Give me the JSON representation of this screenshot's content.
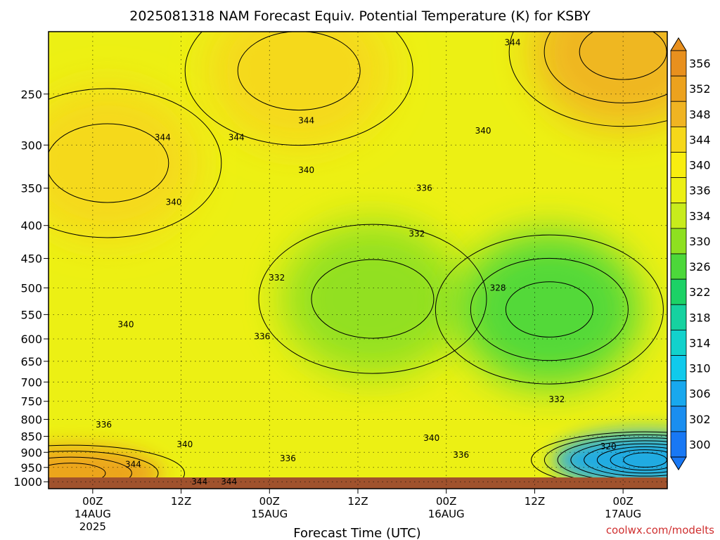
{
  "chart_data": {
    "type": "contour",
    "title": "2025081318 NAM Forecast Equiv. Potential Temperature (K) for KSBY",
    "xlabel": "Forecast Time (UTC)",
    "ylabel": "",
    "y_axis": {
      "ticks": [
        250,
        300,
        350,
        400,
        450,
        500,
        550,
        600,
        650,
        700,
        750,
        800,
        850,
        900,
        950,
        1000
      ],
      "range_hpa": [
        200,
        1025
      ],
      "scale": "log-pressure (inverted)"
    },
    "x_axis": {
      "ticks": [
        {
          "time": "00Z",
          "date": "14AUG",
          "year": "2025"
        },
        {
          "time": "12Z",
          "date": "",
          "year": ""
        },
        {
          "time": "00Z",
          "date": "15AUG",
          "year": ""
        },
        {
          "time": "12Z",
          "date": "",
          "year": ""
        },
        {
          "time": "00Z",
          "date": "16AUG",
          "year": ""
        },
        {
          "time": "12Z",
          "date": "",
          "year": ""
        },
        {
          "time": "00Z",
          "date": "17AUG",
          "year": ""
        }
      ],
      "range_hours": [
        -6,
        78
      ]
    },
    "colorbar": {
      "units": "K",
      "levels": [
        356,
        352,
        348,
        344,
        340,
        336,
        334,
        330,
        326,
        322,
        318,
        314,
        310,
        306,
        302,
        300
      ],
      "colors": [
        "#e8901e",
        "#eca21e",
        "#f0b422",
        "#f6d81a",
        "#f8ee10",
        "#ecf014",
        "#c8ec1c",
        "#8ee020",
        "#4cd83a",
        "#1cd266",
        "#16d2a0",
        "#12d2cc",
        "#10caec",
        "#18a8ee",
        "#1a8ef0",
        "#1878f4"
      ]
    },
    "contour_labels": [
      {
        "value": "344",
        "time_h": 57,
        "p": 208
      },
      {
        "value": "344",
        "time_h": 29,
        "p": 275
      },
      {
        "value": "340",
        "time_h": 53,
        "p": 285
      },
      {
        "value": "344",
        "time_h": 9.5,
        "p": 292
      },
      {
        "value": "344",
        "time_h": 19.5,
        "p": 292
      },
      {
        "value": "340",
        "time_h": 29,
        "p": 328
      },
      {
        "value": "336",
        "time_h": 45,
        "p": 350
      },
      {
        "value": "340",
        "time_h": 11,
        "p": 368
      },
      {
        "value": "332",
        "time_h": 44,
        "p": 412
      },
      {
        "value": "332",
        "time_h": 25,
        "p": 482
      },
      {
        "value": "328",
        "time_h": 55,
        "p": 500
      },
      {
        "value": "340",
        "time_h": 4.5,
        "p": 570
      },
      {
        "value": "336",
        "time_h": 23,
        "p": 595
      },
      {
        "value": "332",
        "time_h": 63,
        "p": 745
      },
      {
        "value": "336",
        "time_h": 1.5,
        "p": 815
      },
      {
        "value": "340",
        "time_h": 46,
        "p": 855
      },
      {
        "value": "340",
        "time_h": 12.5,
        "p": 875
      },
      {
        "value": "320",
        "time_h": 70,
        "p": 882
      },
      {
        "value": "336",
        "time_h": 50,
        "p": 908
      },
      {
        "value": "336",
        "time_h": 26.5,
        "p": 920
      },
      {
        "value": "344",
        "time_h": 5.5,
        "p": 940
      },
      {
        "value": "344",
        "time_h": 14.5,
        "p": 1000
      },
      {
        "value": "344",
        "time_h": 18.5,
        "p": 1000
      }
    ],
    "fields": {
      "background": 338,
      "features": [
        {
          "label": "upper warm band",
          "value": 346,
          "time_h": 28,
          "p": 230
        },
        {
          "label": "upper-left warm plume",
          "value": 346,
          "time_h": 2,
          "p": 320
        },
        {
          "label": "upper-right warm",
          "value": 350,
          "time_h": 72,
          "p": 215
        },
        {
          "label": "mid-level moist pocket",
          "value": 331,
          "time_h": 38,
          "p": 520
        },
        {
          "label": "mid-level dry region",
          "value": 326,
          "time_h": 62,
          "p": 540
        },
        {
          "label": "low-level cold pool",
          "value": 306,
          "time_h": 75,
          "p": 925
        },
        {
          "label": "surface warm pocket",
          "value": 352,
          "time_h": -3,
          "p": 970
        }
      ]
    },
    "credit": "coolwx.com/modelts"
  }
}
